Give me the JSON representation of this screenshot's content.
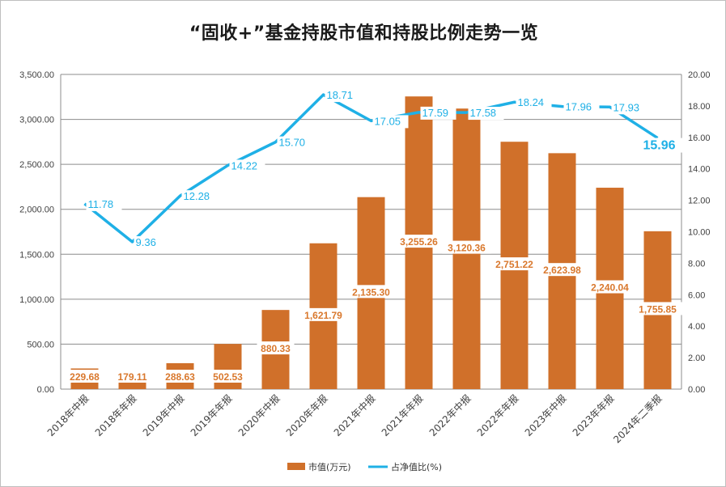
{
  "chart_data": {
    "type": "bar",
    "title": "“固收+”基金持股市值和持股比例走势一览",
    "categories": [
      "2018年中报",
      "2018年年报",
      "2019年中报",
      "2019年年报",
      "2020年中报",
      "2020年年报",
      "2021年中报",
      "2021年年报",
      "2022年中报",
      "2022年年报",
      "2023年中报",
      "2023年年报",
      "2024年二季报"
    ],
    "series": [
      {
        "name": "市值(万元)",
        "type": "bar",
        "axis": "left",
        "color": "#d0702a",
        "values": [
          229.68,
          179.11,
          288.63,
          502.53,
          880.33,
          1621.79,
          2135.3,
          3255.26,
          3120.36,
          2751.22,
          2623.98,
          2240.04,
          1755.85
        ],
        "labels": [
          "229.68",
          "179.11",
          "288.63",
          "502.53",
          "880.33",
          "1,621.79",
          "2,135.30",
          "3,255.26",
          "3,120.36",
          "2,751.22",
          "2,623.98",
          "2,240.04",
          "1,755.85"
        ]
      },
      {
        "name": "占净值比(%)",
        "type": "line",
        "axis": "right",
        "color": "#1fb0e6",
        "values": [
          11.78,
          9.36,
          12.28,
          14.22,
          15.7,
          18.71,
          17.05,
          17.59,
          17.58,
          18.24,
          17.96,
          17.93,
          15.96
        ],
        "labels": [
          "11.78",
          "9.36",
          "12.28",
          "14.22",
          "15.70",
          "18.71",
          "17.05",
          "17.59",
          "17.58",
          "18.24",
          "17.96",
          "17.93",
          "15.96"
        ]
      }
    ],
    "ylim_left": [
      0,
      3500
    ],
    "ylim_right": [
      0,
      20
    ],
    "yticks_left": [
      "0.00",
      "500.00",
      "1,000.00",
      "1,500.00",
      "2,000.00",
      "2,500.00",
      "3,000.00",
      "3,500.00"
    ],
    "yticks_right": [
      "0.00",
      "2.00",
      "4.00",
      "6.00",
      "8.00",
      "10.00",
      "12.00",
      "14.00",
      "16.00",
      "18.00",
      "20.00"
    ],
    "grid": true,
    "legend_position": "bottom"
  },
  "legend": {
    "bar_label": "市值(万元)",
    "line_label": "占净值比(%)"
  }
}
